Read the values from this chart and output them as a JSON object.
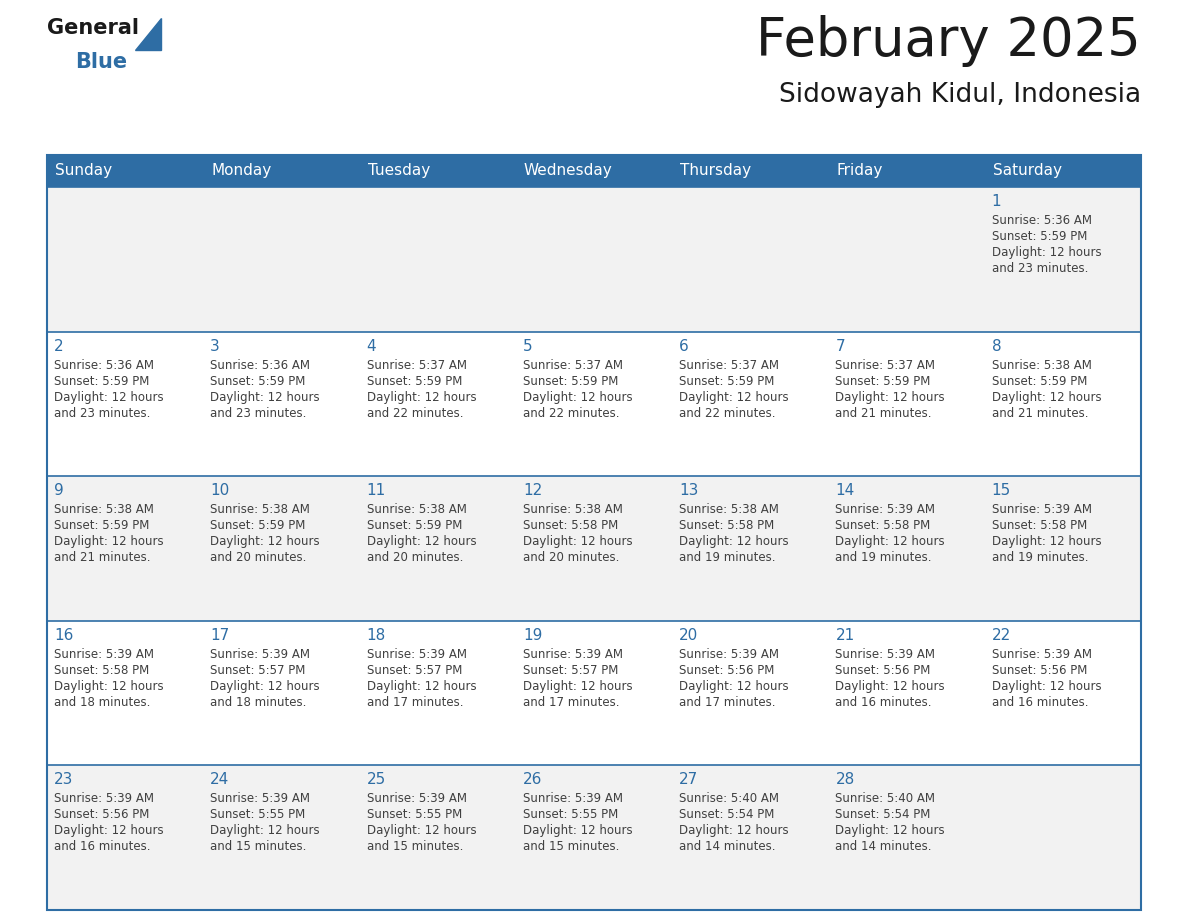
{
  "title": "February 2025",
  "subtitle": "Sidowayah Kidul, Indonesia",
  "header_bg": "#2E6DA4",
  "header_text_color": "#FFFFFF",
  "day_names": [
    "Sunday",
    "Monday",
    "Tuesday",
    "Wednesday",
    "Thursday",
    "Friday",
    "Saturday"
  ],
  "bg_color": "#FFFFFF",
  "cell_bg_even": "#F2F2F2",
  "cell_bg_odd": "#FFFFFF",
  "date_color": "#2E6DA4",
  "text_color": "#404040",
  "line_color": "#2E6DA4",
  "logo_general_color": "#1a1a1a",
  "logo_blue_color": "#2E6DA4",
  "fig_width": 11.88,
  "fig_height": 9.18,
  "dpi": 100,
  "days": [
    {
      "day": 1,
      "row": 0,
      "col": 6,
      "sunrise": "5:36 AM",
      "sunset": "5:59 PM",
      "daylight_hours": 12,
      "daylight_minutes": 23
    },
    {
      "day": 2,
      "row": 1,
      "col": 0,
      "sunrise": "5:36 AM",
      "sunset": "5:59 PM",
      "daylight_hours": 12,
      "daylight_minutes": 23
    },
    {
      "day": 3,
      "row": 1,
      "col": 1,
      "sunrise": "5:36 AM",
      "sunset": "5:59 PM",
      "daylight_hours": 12,
      "daylight_minutes": 23
    },
    {
      "day": 4,
      "row": 1,
      "col": 2,
      "sunrise": "5:37 AM",
      "sunset": "5:59 PM",
      "daylight_hours": 12,
      "daylight_minutes": 22
    },
    {
      "day": 5,
      "row": 1,
      "col": 3,
      "sunrise": "5:37 AM",
      "sunset": "5:59 PM",
      "daylight_hours": 12,
      "daylight_minutes": 22
    },
    {
      "day": 6,
      "row": 1,
      "col": 4,
      "sunrise": "5:37 AM",
      "sunset": "5:59 PM",
      "daylight_hours": 12,
      "daylight_minutes": 22
    },
    {
      "day": 7,
      "row": 1,
      "col": 5,
      "sunrise": "5:37 AM",
      "sunset": "5:59 PM",
      "daylight_hours": 12,
      "daylight_minutes": 21
    },
    {
      "day": 8,
      "row": 1,
      "col": 6,
      "sunrise": "5:38 AM",
      "sunset": "5:59 PM",
      "daylight_hours": 12,
      "daylight_minutes": 21
    },
    {
      "day": 9,
      "row": 2,
      "col": 0,
      "sunrise": "5:38 AM",
      "sunset": "5:59 PM",
      "daylight_hours": 12,
      "daylight_minutes": 21
    },
    {
      "day": 10,
      "row": 2,
      "col": 1,
      "sunrise": "5:38 AM",
      "sunset": "5:59 PM",
      "daylight_hours": 12,
      "daylight_minutes": 20
    },
    {
      "day": 11,
      "row": 2,
      "col": 2,
      "sunrise": "5:38 AM",
      "sunset": "5:59 PM",
      "daylight_hours": 12,
      "daylight_minutes": 20
    },
    {
      "day": 12,
      "row": 2,
      "col": 3,
      "sunrise": "5:38 AM",
      "sunset": "5:58 PM",
      "daylight_hours": 12,
      "daylight_minutes": 20
    },
    {
      "day": 13,
      "row": 2,
      "col": 4,
      "sunrise": "5:38 AM",
      "sunset": "5:58 PM",
      "daylight_hours": 12,
      "daylight_minutes": 19
    },
    {
      "day": 14,
      "row": 2,
      "col": 5,
      "sunrise": "5:39 AM",
      "sunset": "5:58 PM",
      "daylight_hours": 12,
      "daylight_minutes": 19
    },
    {
      "day": 15,
      "row": 2,
      "col": 6,
      "sunrise": "5:39 AM",
      "sunset": "5:58 PM",
      "daylight_hours": 12,
      "daylight_minutes": 19
    },
    {
      "day": 16,
      "row": 3,
      "col": 0,
      "sunrise": "5:39 AM",
      "sunset": "5:58 PM",
      "daylight_hours": 12,
      "daylight_minutes": 18
    },
    {
      "day": 17,
      "row": 3,
      "col": 1,
      "sunrise": "5:39 AM",
      "sunset": "5:57 PM",
      "daylight_hours": 12,
      "daylight_minutes": 18
    },
    {
      "day": 18,
      "row": 3,
      "col": 2,
      "sunrise": "5:39 AM",
      "sunset": "5:57 PM",
      "daylight_hours": 12,
      "daylight_minutes": 17
    },
    {
      "day": 19,
      "row": 3,
      "col": 3,
      "sunrise": "5:39 AM",
      "sunset": "5:57 PM",
      "daylight_hours": 12,
      "daylight_minutes": 17
    },
    {
      "day": 20,
      "row": 3,
      "col": 4,
      "sunrise": "5:39 AM",
      "sunset": "5:56 PM",
      "daylight_hours": 12,
      "daylight_minutes": 17
    },
    {
      "day": 21,
      "row": 3,
      "col": 5,
      "sunrise": "5:39 AM",
      "sunset": "5:56 PM",
      "daylight_hours": 12,
      "daylight_minutes": 16
    },
    {
      "day": 22,
      "row": 3,
      "col": 6,
      "sunrise": "5:39 AM",
      "sunset": "5:56 PM",
      "daylight_hours": 12,
      "daylight_minutes": 16
    },
    {
      "day": 23,
      "row": 4,
      "col": 0,
      "sunrise": "5:39 AM",
      "sunset": "5:56 PM",
      "daylight_hours": 12,
      "daylight_minutes": 16
    },
    {
      "day": 24,
      "row": 4,
      "col": 1,
      "sunrise": "5:39 AM",
      "sunset": "5:55 PM",
      "daylight_hours": 12,
      "daylight_minutes": 15
    },
    {
      "day": 25,
      "row": 4,
      "col": 2,
      "sunrise": "5:39 AM",
      "sunset": "5:55 PM",
      "daylight_hours": 12,
      "daylight_minutes": 15
    },
    {
      "day": 26,
      "row": 4,
      "col": 3,
      "sunrise": "5:39 AM",
      "sunset": "5:55 PM",
      "daylight_hours": 12,
      "daylight_minutes": 15
    },
    {
      "day": 27,
      "row": 4,
      "col": 4,
      "sunrise": "5:40 AM",
      "sunset": "5:54 PM",
      "daylight_hours": 12,
      "daylight_minutes": 14
    },
    {
      "day": 28,
      "row": 4,
      "col": 5,
      "sunrise": "5:40 AM",
      "sunset": "5:54 PM",
      "daylight_hours": 12,
      "daylight_minutes": 14
    }
  ]
}
